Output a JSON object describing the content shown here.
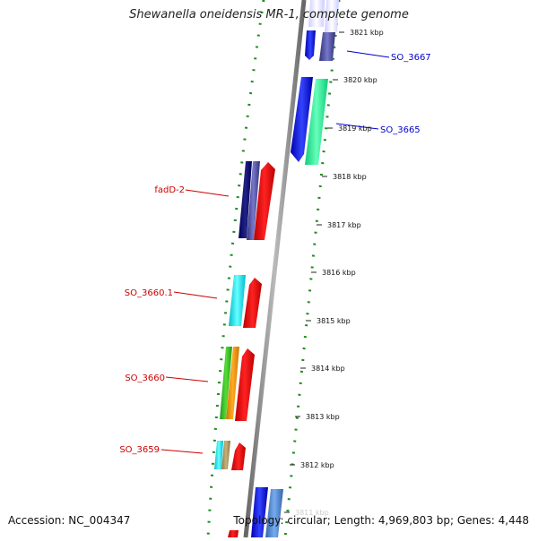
{
  "title": "Shewanella oneidensis MR-1, complete genome",
  "accession": "Accession: NC_004347",
  "topology": "Topology: circular; Length: 4,969,803 bp; Genes: 4,448",
  "ticks": [
    "3821 kbp",
    "3820 kbp",
    "3819 kbp",
    "3818 kbp",
    "3817 kbp",
    "3816 kbp",
    "3815 kbp",
    "3814 kbp",
    "3813 kbp",
    "3812 kbp",
    "3811 kbp"
  ],
  "gene_labels": [
    {
      "text": "SO_3667",
      "color": "#0000cc"
    },
    {
      "text": "SO_3665",
      "color": "#0000cc"
    },
    {
      "text": "fadD-2",
      "color": "#cc0000"
    },
    {
      "text": "SO_3660.1",
      "color": "#cc0000"
    },
    {
      "text": "SO_3660",
      "color": "#cc0000"
    },
    {
      "text": "SO_3659",
      "color": "#cc0000"
    }
  ],
  "colors": {
    "backbone": "#888888",
    "dotted_ring": "#228b22",
    "forward_label": "#0000cc",
    "reverse_label": "#cc0000"
  }
}
